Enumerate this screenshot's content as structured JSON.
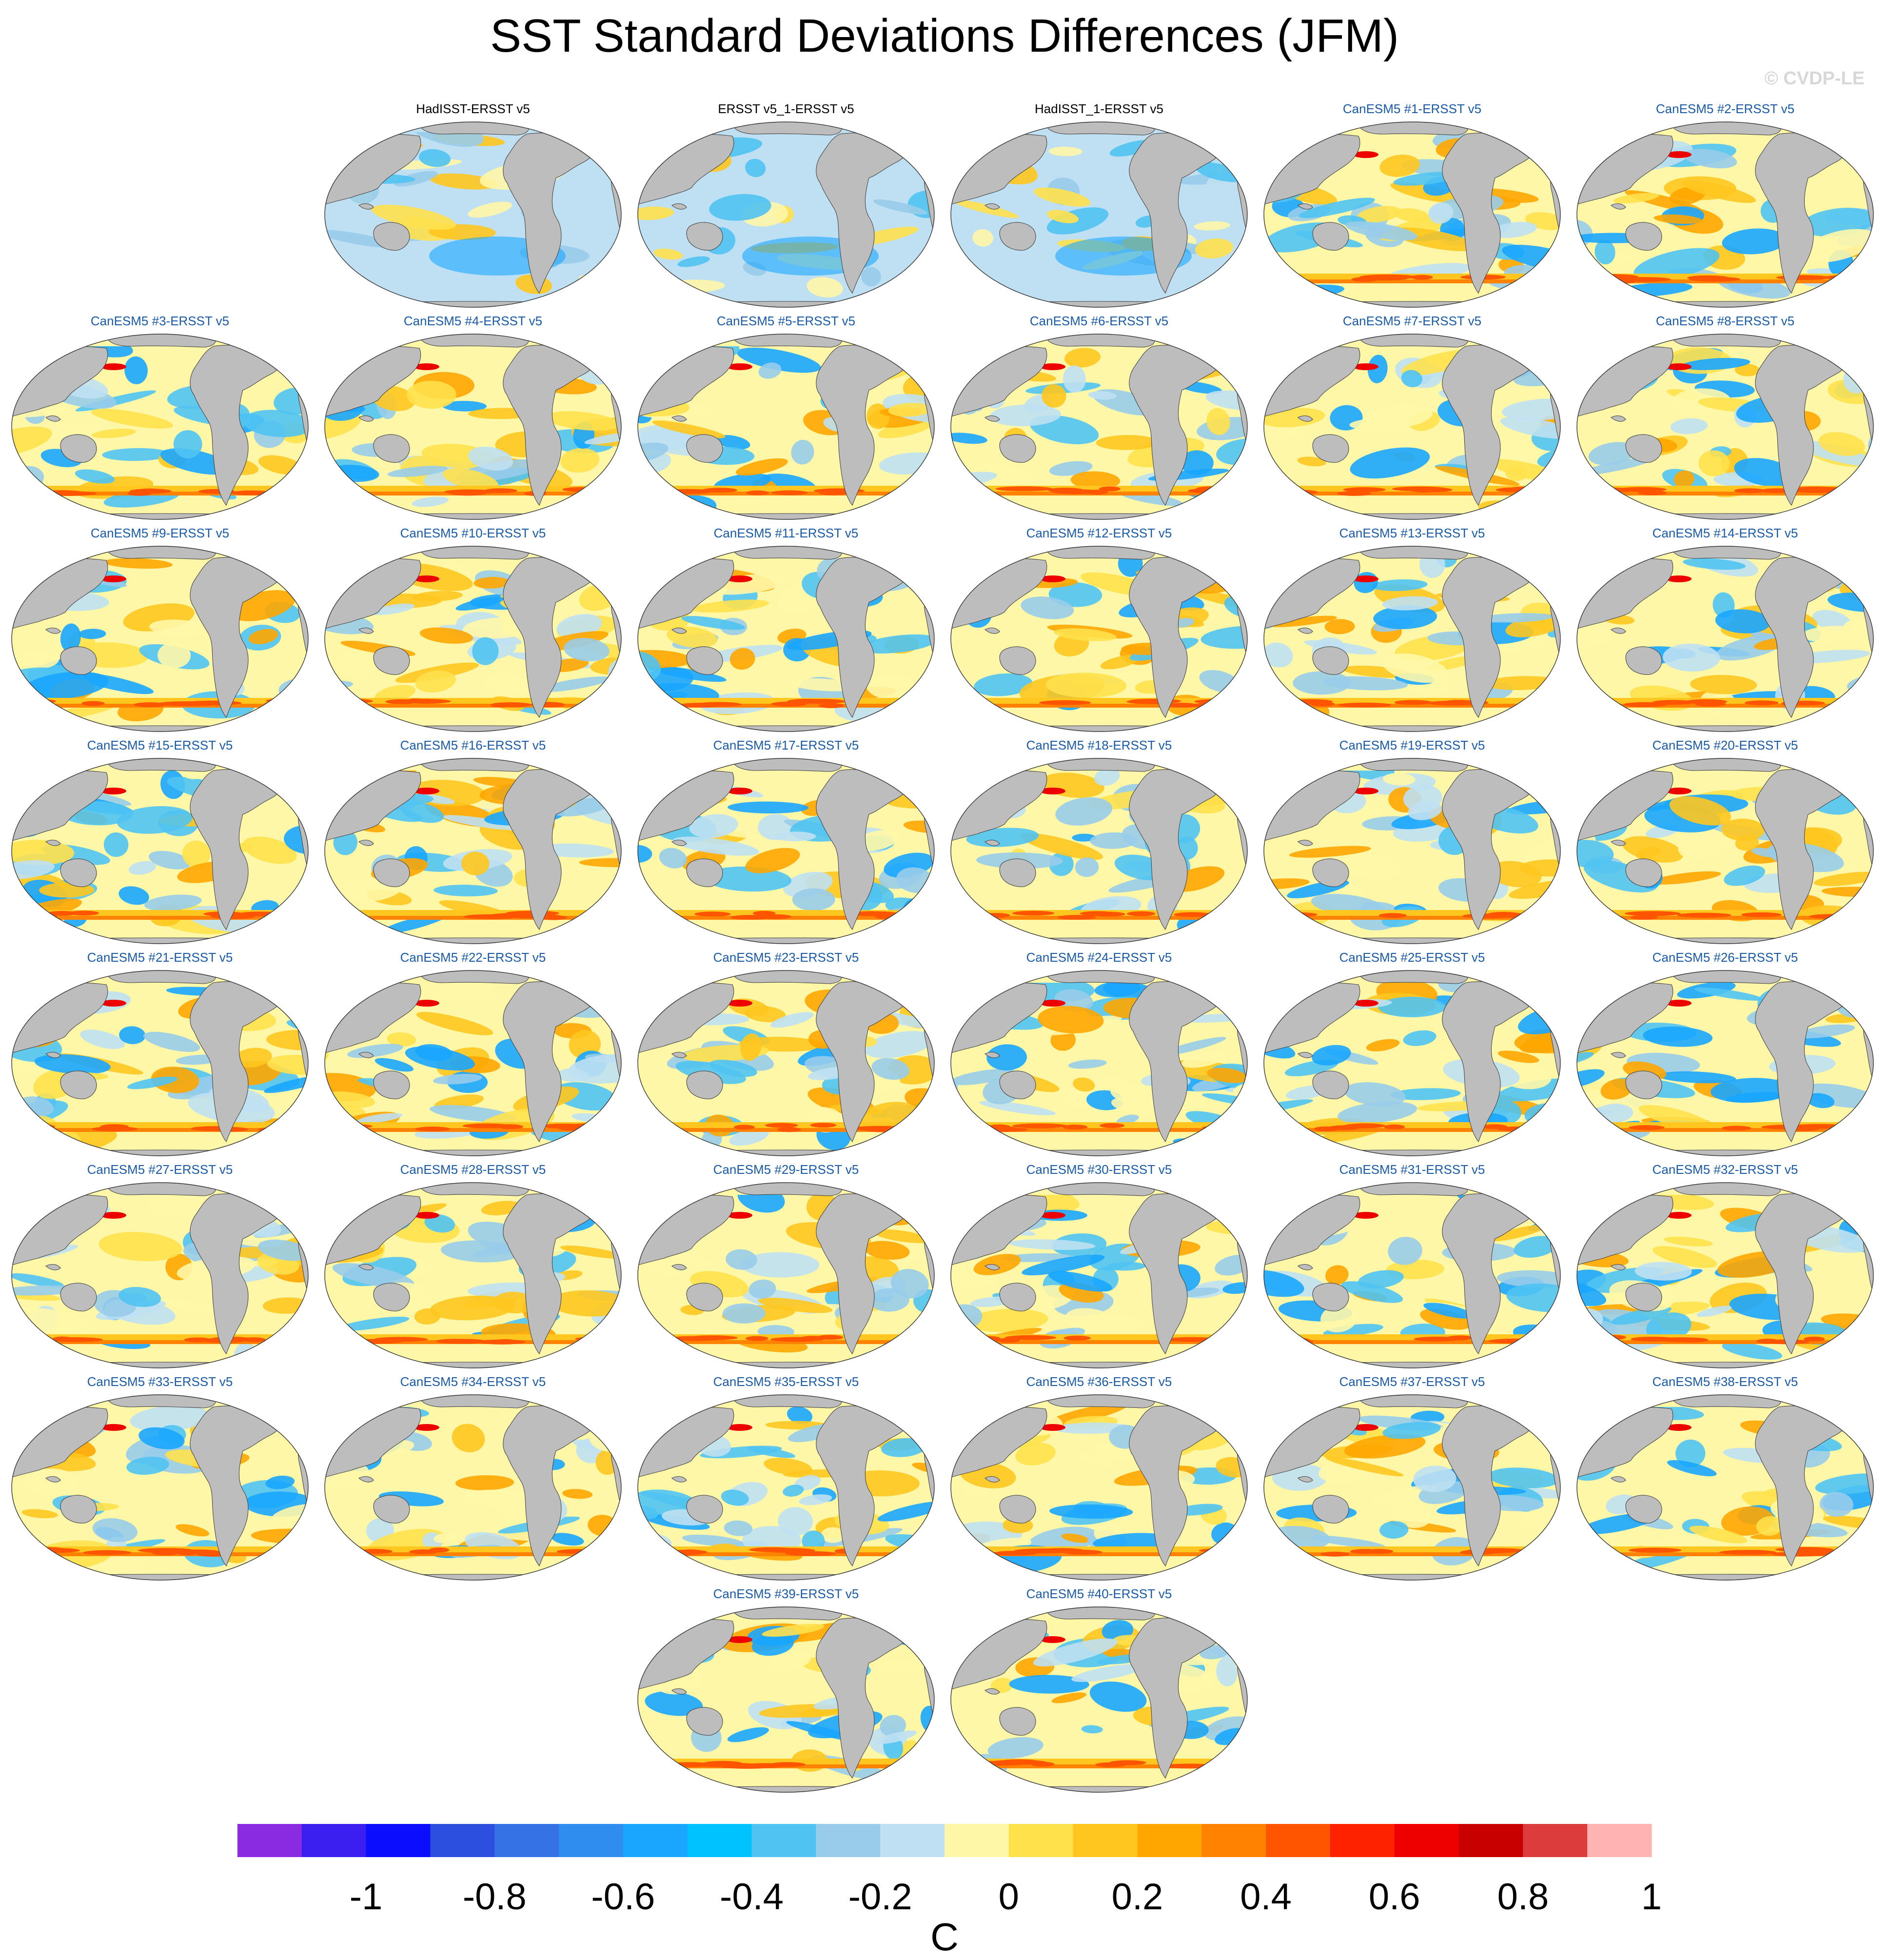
{
  "title": "SST Standard Deviations Differences (JFM)",
  "watermark": "© CVDP-LE",
  "panels": [
    {
      "label": "HadISST-ERSST v5",
      "kind": "obs"
    },
    {
      "label": "ERSST v5_1-ERSST v5",
      "kind": "obs"
    },
    {
      "label": "HadISST_1-ERSST v5",
      "kind": "obs"
    },
    {
      "label": "CanESM5 #1-ERSST v5",
      "kind": "model"
    },
    {
      "label": "CanESM5 #2-ERSST v5",
      "kind": "model"
    },
    {
      "label": "CanESM5 #3-ERSST v5",
      "kind": "model"
    },
    {
      "label": "CanESM5 #4-ERSST v5",
      "kind": "model"
    },
    {
      "label": "CanESM5 #5-ERSST v5",
      "kind": "model"
    },
    {
      "label": "CanESM5 #6-ERSST v5",
      "kind": "model"
    },
    {
      "label": "CanESM5 #7-ERSST v5",
      "kind": "model"
    },
    {
      "label": "CanESM5 #8-ERSST v5",
      "kind": "model"
    },
    {
      "label": "CanESM5 #9-ERSST v5",
      "kind": "model"
    },
    {
      "label": "CanESM5 #10-ERSST v5",
      "kind": "model"
    },
    {
      "label": "CanESM5 #11-ERSST v5",
      "kind": "model"
    },
    {
      "label": "CanESM5 #12-ERSST v5",
      "kind": "model"
    },
    {
      "label": "CanESM5 #13-ERSST v5",
      "kind": "model"
    },
    {
      "label": "CanESM5 #14-ERSST v5",
      "kind": "model"
    },
    {
      "label": "CanESM5 #15-ERSST v5",
      "kind": "model"
    },
    {
      "label": "CanESM5 #16-ERSST v5",
      "kind": "model"
    },
    {
      "label": "CanESM5 #17-ERSST v5",
      "kind": "model"
    },
    {
      "label": "CanESM5 #18-ERSST v5",
      "kind": "model"
    },
    {
      "label": "CanESM5 #19-ERSST v5",
      "kind": "model"
    },
    {
      "label": "CanESM5 #20-ERSST v5",
      "kind": "model"
    },
    {
      "label": "CanESM5 #21-ERSST v5",
      "kind": "model"
    },
    {
      "label": "CanESM5 #22-ERSST v5",
      "kind": "model"
    },
    {
      "label": "CanESM5 #23-ERSST v5",
      "kind": "model"
    },
    {
      "label": "CanESM5 #24-ERSST v5",
      "kind": "model"
    },
    {
      "label": "CanESM5 #25-ERSST v5",
      "kind": "model"
    },
    {
      "label": "CanESM5 #26-ERSST v5",
      "kind": "model"
    },
    {
      "label": "CanESM5 #27-ERSST v5",
      "kind": "model"
    },
    {
      "label": "CanESM5 #28-ERSST v5",
      "kind": "model"
    },
    {
      "label": "CanESM5 #29-ERSST v5",
      "kind": "model"
    },
    {
      "label": "CanESM5 #30-ERSST v5",
      "kind": "model"
    },
    {
      "label": "CanESM5 #31-ERSST v5",
      "kind": "model"
    },
    {
      "label": "CanESM5 #32-ERSST v5",
      "kind": "model"
    },
    {
      "label": "CanESM5 #33-ERSST v5",
      "kind": "model"
    },
    {
      "label": "CanESM5 #34-ERSST v5",
      "kind": "model"
    },
    {
      "label": "CanESM5 #35-ERSST v5",
      "kind": "model"
    },
    {
      "label": "CanESM5 #36-ERSST v5",
      "kind": "model"
    },
    {
      "label": "CanESM5 #37-ERSST v5",
      "kind": "model"
    },
    {
      "label": "CanESM5 #38-ERSST v5",
      "kind": "model"
    },
    {
      "label": "CanESM5 #39-ERSST v5",
      "kind": "model"
    },
    {
      "label": "CanESM5 #40-ERSST v5",
      "kind": "model"
    }
  ],
  "colorbar": {
    "unit": "C",
    "colors": [
      "#8a2be2",
      "#3a1ff0",
      "#0a0dff",
      "#2c4fe0",
      "#3572e6",
      "#2f8df0",
      "#1aa6ff",
      "#00c2ff",
      "#50c3f2",
      "#98ccea",
      "#bfe0f2",
      "#fff7a8",
      "#ffe14c",
      "#ffc61f",
      "#ffa600",
      "#ff8300",
      "#ff5500",
      "#ff2200",
      "#ee0000",
      "#c80000",
      "#dc3c3c",
      "#ffb3b3"
    ],
    "tick_labels": [
      "-1",
      "-0.8",
      "-0.6",
      "-0.4",
      "-0.2",
      "0",
      "0.2",
      "0.4",
      "0.6",
      "0.8",
      "1"
    ]
  }
}
